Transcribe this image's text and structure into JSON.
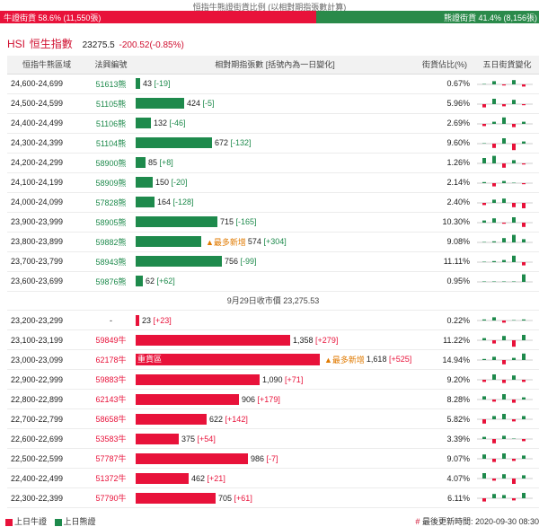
{
  "ratio": {
    "caption": "恒指牛熊證街貨比例 (以相對期指張數計算)",
    "bull_label": "牛證街貨 58.6% (11,550張)",
    "bear_label": "熊證街貨 41.4% (8,156張)",
    "bull_fraction": 0.586
  },
  "header": {
    "code": "HSI",
    "name": "恒生指數",
    "price": "23275.5",
    "change": "-200.52(-0.85%)"
  },
  "columns": {
    "range": "恒指牛熊區域",
    "symbol": "法興編號",
    "contracts": "相對期指張數 [括號內為一日變化]",
    "share": "街貨佔比(%)",
    "trend": "五日街貨變化"
  },
  "bear_rows": [
    {
      "range": "24,600-24,699",
      "symbol": "51613熊",
      "contracts": 43,
      "contracts_text": "43",
      "delta": "[-19]",
      "share": "0.67%",
      "spark": [
        0,
        3,
        -1,
        4,
        -2
      ]
    },
    {
      "range": "24,500-24,599",
      "symbol": "51105熊",
      "contracts": 424,
      "contracts_text": "424",
      "delta": "[-5]",
      "share": "5.96%",
      "spark": [
        -3,
        5,
        -2,
        4,
        -1
      ]
    },
    {
      "range": "24,400-24,499",
      "symbol": "51106熊",
      "contracts": 132,
      "contracts_text": "132",
      "delta": "[-46]",
      "share": "2.69%",
      "spark": [
        -2,
        2,
        6,
        -3,
        2
      ]
    },
    {
      "range": "24,300-24,399",
      "symbol": "51104熊",
      "contracts": 672,
      "contracts_text": "672",
      "delta": "[-132]",
      "share": "9.60%",
      "spark": [
        0,
        -4,
        5,
        -6,
        2
      ]
    },
    {
      "range": "24,200-24,299",
      "symbol": "58900熊",
      "contracts": 85,
      "contracts_text": "85",
      "delta": "[+8]",
      "share": "1.26%",
      "spark": [
        5,
        7,
        -4,
        3,
        -1
      ]
    },
    {
      "range": "24,100-24,199",
      "symbol": "58909熊",
      "contracts": 150,
      "contracts_text": "150",
      "delta": "[-20]",
      "share": "2.14%",
      "spark": [
        1,
        -3,
        2,
        0,
        -1
      ]
    },
    {
      "range": "24,000-24,099",
      "symbol": "57828熊",
      "contracts": 164,
      "contracts_text": "164",
      "delta": "[-128]",
      "share": "2.40%",
      "spark": [
        -2,
        3,
        4,
        -4,
        -5
      ]
    },
    {
      "range": "23,900-23,999",
      "symbol": "58905熊",
      "contracts": 715,
      "contracts_text": "715",
      "delta": "[-165]",
      "share": "10.30%",
      "spark": [
        2,
        4,
        -1,
        5,
        -4
      ]
    },
    {
      "range": "23,800-23,899",
      "symbol": "59882熊",
      "contracts": 574,
      "contracts_text": "574",
      "delta": "[+304]",
      "share": "9.08%",
      "spark": [
        0,
        1,
        4,
        7,
        3
      ],
      "most": "▲最多新增"
    },
    {
      "range": "23,700-23,799",
      "symbol": "58943熊",
      "contracts": 756,
      "contracts_text": "756",
      "delta": "[-99]",
      "share": "11.11%",
      "spark": [
        0,
        1,
        2,
        6,
        -3
      ]
    },
    {
      "range": "23,600-23,699",
      "symbol": "59876熊",
      "contracts": 62,
      "contracts_text": "62",
      "delta": "[+62]",
      "share": "0.95%",
      "spark": [
        0,
        0,
        0,
        0,
        7
      ]
    }
  ],
  "separator": "9月29日收市價 23,275.53",
  "bull_rows": [
    {
      "range": "23,200-23,299",
      "symbol": "-",
      "contracts": 23,
      "contracts_text": "23",
      "delta": "[+23]",
      "share": "0.22%",
      "spark": [
        1,
        3,
        -2,
        0,
        1
      ]
    },
    {
      "range": "23,100-23,199",
      "symbol": "59849牛",
      "contracts": 1358,
      "contracts_text": "1,358",
      "delta": "[+279]",
      "share": "11.22%",
      "spark": [
        2,
        -3,
        4,
        -6,
        5
      ]
    },
    {
      "range": "23,000-23,099",
      "symbol": "62178牛",
      "contracts": 1618,
      "contracts_text": "1,618",
      "delta": "[+525]",
      "share": "14.94%",
      "spark": [
        1,
        3,
        -4,
        2,
        6
      ],
      "most": "▲最多新增",
      "heavy": "重貨區"
    },
    {
      "range": "22,900-22,999",
      "symbol": "59883牛",
      "contracts": 1090,
      "contracts_text": "1,090",
      "delta": "[+71]",
      "share": "9.20%",
      "spark": [
        -2,
        5,
        -3,
        4,
        -2
      ]
    },
    {
      "range": "22,800-22,899",
      "symbol": "62143牛",
      "contracts": 906,
      "contracts_text": "906",
      "delta": "[+179]",
      "share": "8.28%",
      "spark": [
        3,
        -2,
        5,
        -3,
        2
      ]
    },
    {
      "range": "22,700-22,799",
      "symbol": "58658牛",
      "contracts": 622,
      "contracts_text": "622",
      "delta": "[+142]",
      "share": "5.82%",
      "spark": [
        -4,
        3,
        5,
        -2,
        3
      ]
    },
    {
      "range": "22,600-22,699",
      "symbol": "53583牛",
      "contracts": 375,
      "contracts_text": "375",
      "delta": "[+54]",
      "share": "3.39%",
      "spark": [
        2,
        -4,
        3,
        0,
        -2
      ]
    },
    {
      "range": "22,500-22,599",
      "symbol": "57787牛",
      "contracts": 986,
      "contracts_text": "986",
      "delta": "[-7]",
      "share": "9.07%",
      "spark": [
        4,
        -3,
        5,
        -2,
        3
      ]
    },
    {
      "range": "22,400-22,499",
      "symbol": "51372牛",
      "contracts": 462,
      "contracts_text": "462",
      "delta": "[+21]",
      "share": "4.07%",
      "spark": [
        5,
        -2,
        4,
        -5,
        3
      ]
    },
    {
      "range": "22,300-22,399",
      "symbol": "57790牛",
      "contracts": 705,
      "contracts_text": "705",
      "delta": "[+61]",
      "share": "6.11%",
      "spark": [
        -3,
        4,
        3,
        -2,
        5
      ]
    }
  ],
  "footer": {
    "legend_bull": "上日牛證",
    "legend_bear": "上日熊證",
    "hash": "#",
    "updated": "最後更新時間: 2020-09-30 08:30"
  },
  "colors": {
    "bull": "#e8123a",
    "bear": "#1e8a4c",
    "most": "#e07a00"
  }
}
